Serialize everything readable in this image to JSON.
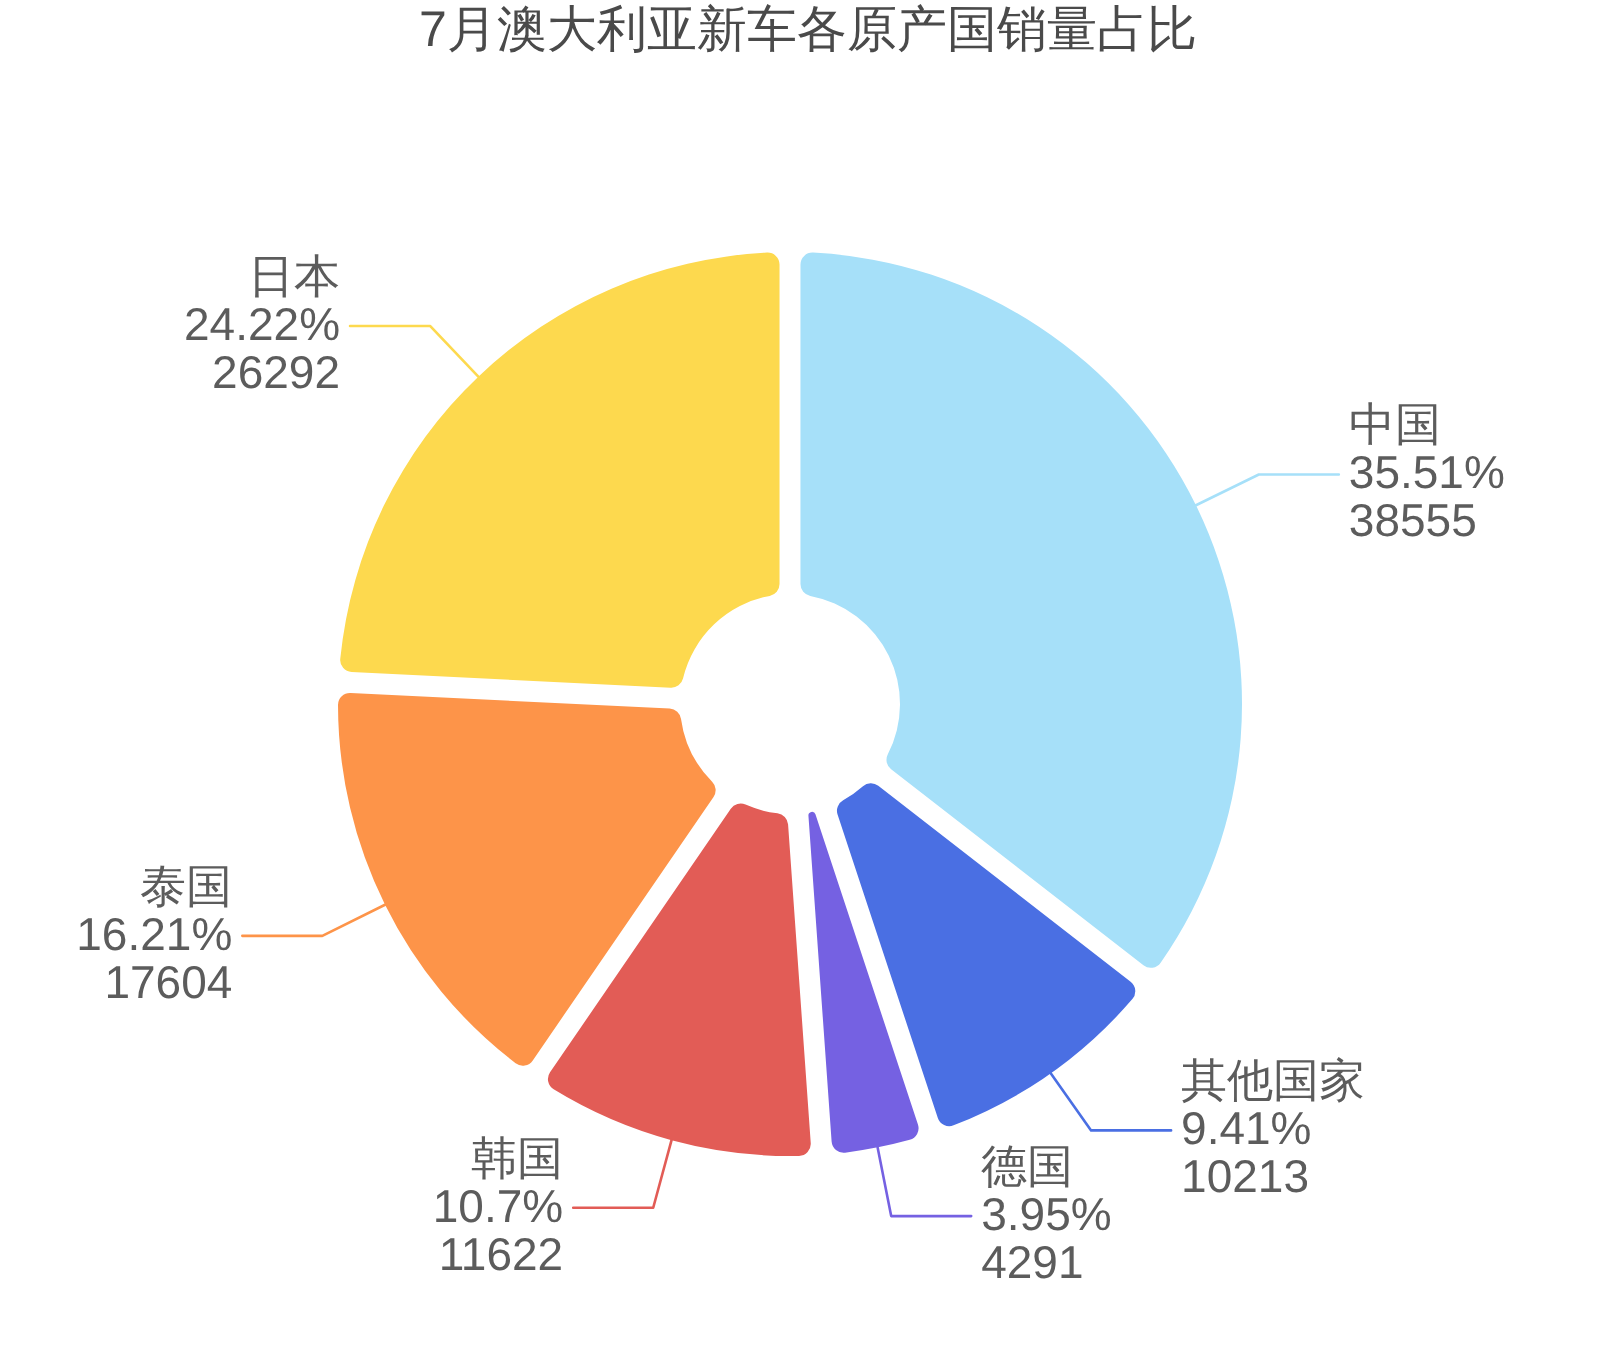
{
  "chart_data": {
    "type": "donut",
    "title": "7月澳大利亚新车各原产国销量占比",
    "categories": [
      "中国",
      "其他国家",
      "德国",
      "韩国",
      "泰国",
      "日本"
    ],
    "values": [
      35.51,
      9.41,
      3.95,
      10.7,
      16.21,
      24.22
    ],
    "colors": [
      "#a6e0f9",
      "#4a6fe3",
      "#7561e2",
      "#e25c56",
      "#fd9449",
      "#fdd94e"
    ],
    "value_labels": [
      "35.51%\n38555",
      "9.41%\n10213",
      "3.95%\n4291",
      "10.7%\n11622",
      "16.21%\n17604",
      "24.22%\n26292"
    ]
  }
}
